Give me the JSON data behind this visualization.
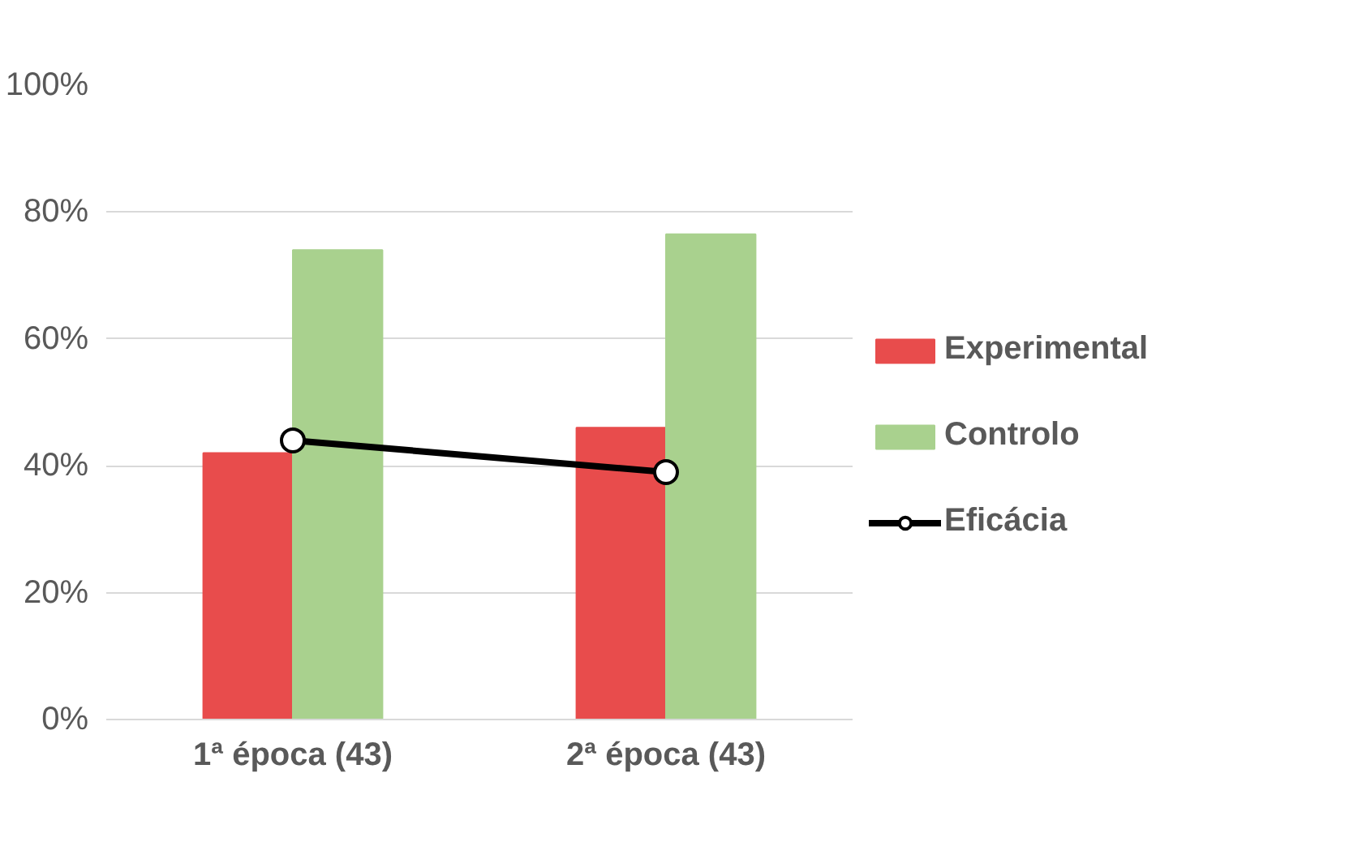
{
  "chart_data": {
    "type": "bar",
    "categories": [
      "1ª época (43)",
      "2ª época (43)"
    ],
    "series": [
      {
        "name": "Experimental",
        "color": "#e84c4c",
        "values": [
          42,
          46
        ]
      },
      {
        "name": "Controlo",
        "color": "#a9d18e",
        "values": [
          74,
          76.5
        ]
      },
      {
        "name": "Eficácia",
        "type": "line",
        "color": "#000000",
        "values": [
          44,
          39
        ],
        "marker": "circle",
        "line_style": "solid"
      }
    ],
    "ylim": [
      0,
      100
    ],
    "yticks": [
      {
        "value": 0,
        "label": "0%"
      },
      {
        "value": 20,
        "label": "20%"
      },
      {
        "value": 40,
        "label": "40%"
      },
      {
        "value": 60,
        "label": "60%"
      },
      {
        "value": 80,
        "label": "80%"
      },
      {
        "value": 100,
        "label": "100%"
      }
    ],
    "grid": "y",
    "legend": "right"
  }
}
